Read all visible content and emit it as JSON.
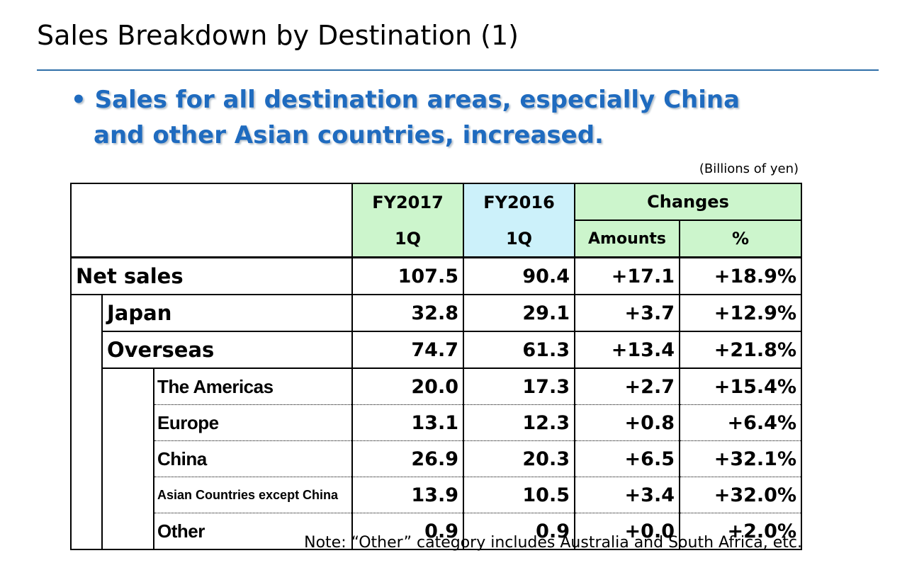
{
  "title": "Sales Breakdown by Destination (1)",
  "bullet": {
    "line1": "• Sales for all destination areas, especially China",
    "line2": "and other Asian countries, increased."
  },
  "unit": "(Billions of yen)",
  "table": {
    "headers": {
      "col1_top": "FY2017",
      "col1_bottom": "1Q",
      "col2_top": "FY2016",
      "col2_bottom": "1Q",
      "changes": "Changes",
      "amounts": "Amounts",
      "percent": "%"
    },
    "rows": [
      {
        "label": "Net sales",
        "fy2017": "107.5",
        "fy2016": "90.4",
        "amount": "+17.1",
        "pct": "+18.9%"
      },
      {
        "label": "Japan",
        "fy2017": "32.8",
        "fy2016": "29.1",
        "amount": "+3.7",
        "pct": "+12.9%"
      },
      {
        "label": "Overseas",
        "fy2017": "74.7",
        "fy2016": "61.3",
        "amount": "+13.4",
        "pct": "+21.8%"
      },
      {
        "label": "The Americas",
        "fy2017": "20.0",
        "fy2016": "17.3",
        "amount": "+2.7",
        "pct": "+15.4%"
      },
      {
        "label": "Europe",
        "fy2017": "13.1",
        "fy2016": "12.3",
        "amount": "+0.8",
        "pct": "+6.4%"
      },
      {
        "label": "China",
        "fy2017": "26.9",
        "fy2016": "20.3",
        "amount": "+6.5",
        "pct": "+32.1%"
      },
      {
        "label": "Asian Countries except China",
        "fy2017": "13.9",
        "fy2016": "10.5",
        "amount": "+3.4",
        "pct": "+32.0%"
      },
      {
        "label": "Other",
        "fy2017": "0.9",
        "fy2016": "0.9",
        "amount": "+0.0",
        "pct": "+2.0%"
      }
    ]
  },
  "note": "Note: “Other” category includes Australia and South Africa, etc."
}
